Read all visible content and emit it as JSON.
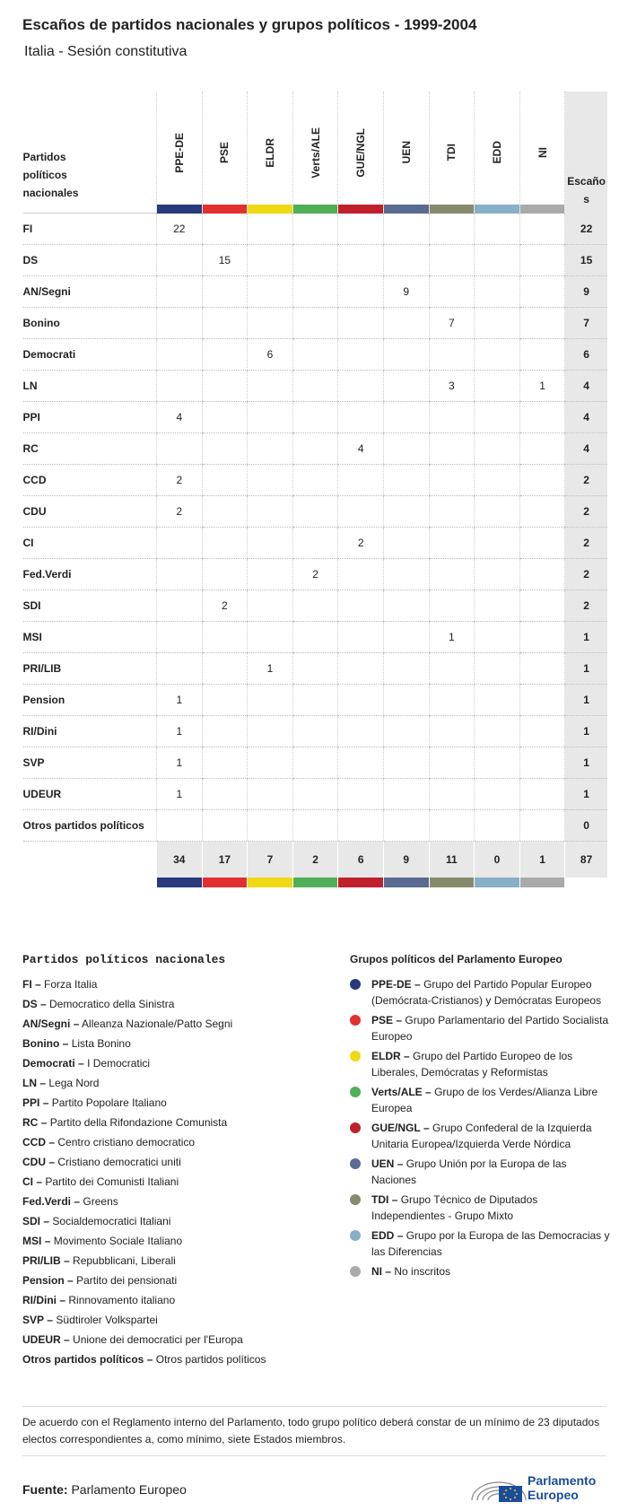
{
  "header": {
    "title": "Escaños de partidos nacionales y grupos políticos - 1999-2004",
    "subtitle": "Italia - Sesión constitutiva"
  },
  "table": {
    "corner": "Partidos políticos nacionales",
    "total_header": "Escaños",
    "groups": [
      {
        "name": "PPE-DE",
        "color": "#283a7c"
      },
      {
        "name": "PSE",
        "color": "#e1302f"
      },
      {
        "name": "ELDR",
        "color": "#efd915"
      },
      {
        "name": "Verts/ALE",
        "color": "#4eaf56"
      },
      {
        "name": "GUE/NGL",
        "color": "#c0202b"
      },
      {
        "name": "UEN",
        "color": "#5a6b91"
      },
      {
        "name": "TDI",
        "color": "#868b6c"
      },
      {
        "name": "EDD",
        "color": "#87afc8"
      },
      {
        "name": "NI",
        "color": "#aaaaaa"
      }
    ],
    "rows": [
      {
        "party": "FI",
        "values": [
          22,
          null,
          null,
          null,
          null,
          null,
          null,
          null,
          null
        ],
        "total": 22
      },
      {
        "party": "DS",
        "values": [
          null,
          15,
          null,
          null,
          null,
          null,
          null,
          null,
          null
        ],
        "total": 15
      },
      {
        "party": "AN/Segni",
        "values": [
          null,
          null,
          null,
          null,
          null,
          9,
          null,
          null,
          null
        ],
        "total": 9
      },
      {
        "party": "Bonino",
        "values": [
          null,
          null,
          null,
          null,
          null,
          null,
          7,
          null,
          null
        ],
        "total": 7
      },
      {
        "party": "Democrati",
        "values": [
          null,
          null,
          6,
          null,
          null,
          null,
          null,
          null,
          null
        ],
        "total": 6
      },
      {
        "party": "LN",
        "values": [
          null,
          null,
          null,
          null,
          null,
          null,
          3,
          null,
          1
        ],
        "total": 4
      },
      {
        "party": "PPI",
        "values": [
          4,
          null,
          null,
          null,
          null,
          null,
          null,
          null,
          null
        ],
        "total": 4
      },
      {
        "party": "RC",
        "values": [
          null,
          null,
          null,
          null,
          4,
          null,
          null,
          null,
          null
        ],
        "total": 4
      },
      {
        "party": "CCD",
        "values": [
          2,
          null,
          null,
          null,
          null,
          null,
          null,
          null,
          null
        ],
        "total": 2
      },
      {
        "party": "CDU",
        "values": [
          2,
          null,
          null,
          null,
          null,
          null,
          null,
          null,
          null
        ],
        "total": 2
      },
      {
        "party": "CI",
        "values": [
          null,
          null,
          null,
          null,
          2,
          null,
          null,
          null,
          null
        ],
        "total": 2
      },
      {
        "party": "Fed.Verdi",
        "values": [
          null,
          null,
          null,
          2,
          null,
          null,
          null,
          null,
          null
        ],
        "total": 2
      },
      {
        "party": "SDI",
        "values": [
          null,
          2,
          null,
          null,
          null,
          null,
          null,
          null,
          null
        ],
        "total": 2
      },
      {
        "party": "MSI",
        "values": [
          null,
          null,
          null,
          null,
          null,
          null,
          1,
          null,
          null
        ],
        "total": 1
      },
      {
        "party": "PRI/LIB",
        "values": [
          null,
          null,
          1,
          null,
          null,
          null,
          null,
          null,
          null
        ],
        "total": 1
      },
      {
        "party": "Pension",
        "values": [
          1,
          null,
          null,
          null,
          null,
          null,
          null,
          null,
          null
        ],
        "total": 1
      },
      {
        "party": "RI/Dini",
        "values": [
          1,
          null,
          null,
          null,
          null,
          null,
          null,
          null,
          null
        ],
        "total": 1
      },
      {
        "party": "SVP",
        "values": [
          1,
          null,
          null,
          null,
          null,
          null,
          null,
          null,
          null
        ],
        "total": 1
      },
      {
        "party": "UDEUR",
        "values": [
          1,
          null,
          null,
          null,
          null,
          null,
          null,
          null,
          null
        ],
        "total": 1
      },
      {
        "party": "Otros partidos políticos",
        "values": [
          null,
          null,
          null,
          null,
          null,
          null,
          null,
          null,
          null
        ],
        "total": 0
      }
    ],
    "totals": {
      "values": [
        34,
        17,
        7,
        2,
        6,
        9,
        11,
        0,
        1
      ],
      "total": 87
    }
  },
  "legend": {
    "separator": "–",
    "parties_title": "Partidos políticos nacionales",
    "parties": [
      {
        "abbr": "FI",
        "name": "Forza Italia"
      },
      {
        "abbr": "DS",
        "name": "Democratico della Sinistra"
      },
      {
        "abbr": "AN/Segni",
        "name": "Alleanza Nazionale/Patto Segni"
      },
      {
        "abbr": "Bonino",
        "name": "Lista Bonino"
      },
      {
        "abbr": "Democrati",
        "name": "I Democratici"
      },
      {
        "abbr": "LN",
        "name": "Lega Nord"
      },
      {
        "abbr": "PPI",
        "name": "Partito Popolare Italiano"
      },
      {
        "abbr": "RC",
        "name": "Partito della Rifondazione Comunista"
      },
      {
        "abbr": "CCD",
        "name": "Centro cristiano democratico"
      },
      {
        "abbr": "CDU",
        "name": "Cristiano democratici uniti"
      },
      {
        "abbr": "CI",
        "name": "Partito dei Comunisti Italiani"
      },
      {
        "abbr": "Fed.Verdi",
        "name": "Greens"
      },
      {
        "abbr": "SDI",
        "name": "Socialdemocratici Italiani"
      },
      {
        "abbr": "MSI",
        "name": "Movimento Sociale Italiano"
      },
      {
        "abbr": "PRI/LIB",
        "name": "Repubblicani, Liberali"
      },
      {
        "abbr": "Pension",
        "name": "Partito dei pensionati"
      },
      {
        "abbr": "RI/Dini",
        "name": "Rinnovamento italiano"
      },
      {
        "abbr": "SVP",
        "name": "Südtiroler Volkspartei"
      },
      {
        "abbr": "UDEUR",
        "name": "Unione dei democratici per l'Europa"
      },
      {
        "abbr": "Otros partidos políticos",
        "name": "Otros partidos políticos"
      }
    ],
    "groups_title": "Grupos políticos del Parlamento Europeo",
    "groups": [
      "Grupo del Partido Popular Europeo (Demócrata-Cristianos) y Demócratas Europeos",
      "Grupo Parlamentario del Partido Socialista Europeo",
      "Grupo del Partido Europeo de los Liberales, Demócratas y Reformistas",
      "Grupo de los Verdes/Alianza Libre Europea",
      "Grupo Confederal de la Izquierda Unitaria Europea/Izquierda Verde Nórdica",
      "Grupo Unión por la Europa de las Naciones",
      "Grupo Técnico de Diputados Independientes - Grupo Mixto",
      "Grupo por la Europa de las Democracias y las Diferencias",
      "No inscritos"
    ]
  },
  "note": "De acuerdo con el Reglamento interno del Parlamento, todo grupo político deberá constar de un mínimo de 23 diputados electos correspondientes a, como mínimo, siete Estados miembros.",
  "source": {
    "label": "Fuente:",
    "text": "Parlamento Europeo"
  },
  "logo": "Parlamento Europeo"
}
